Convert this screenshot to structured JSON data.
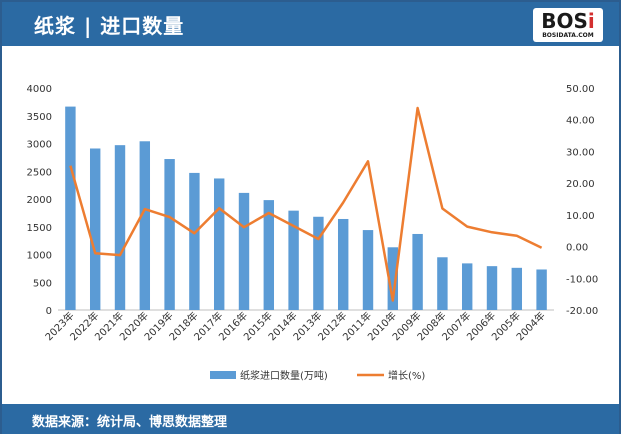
{
  "header": {
    "title": "纸浆 | 进口数量"
  },
  "logo": {
    "word_a": "BOS",
    "word_b": "i",
    "sub": "BOSIDATA.COM"
  },
  "footer": {
    "source": "数据来源：统计局、博思数据整理"
  },
  "colors": {
    "bar": "#5b9bd5",
    "line": "#ed7d31",
    "header": "#2b6aa3"
  },
  "chart_data": {
    "type": "bar",
    "categories": [
      "2023年",
      "2022年",
      "2021年",
      "2020年",
      "2019年",
      "2018年",
      "2017年",
      "2016年",
      "2015年",
      "2014年",
      "2013年",
      "2012年",
      "2011年",
      "2010年",
      "2009年",
      "2008年",
      "2007年",
      "2006年",
      "2005年",
      "2004年"
    ],
    "series": [
      {
        "name": "纸浆进口数量(万吨)",
        "type": "bar",
        "axis": "left",
        "values": [
          3665,
          2910,
          2970,
          3040,
          2720,
          2470,
          2370,
          2110,
          1980,
          1790,
          1680,
          1640,
          1440,
          1130,
          1370,
          950,
          840,
          790,
          760,
          730
        ]
      },
      {
        "name": "增长(%)",
        "type": "line",
        "axis": "right",
        "values": [
          25.5,
          -2.1,
          -2.7,
          11.8,
          9.3,
          4.2,
          12.1,
          6.1,
          10.6,
          6.5,
          2.4,
          13.9,
          26.9,
          -17.0,
          43.7,
          12.0,
          6.3,
          4.5,
          3.4,
          -0.4
        ]
      }
    ],
    "y_left": {
      "min": 0,
      "max": 4000,
      "step": 500,
      "ticks": [
        "0",
        "500",
        "1000",
        "1500",
        "2000",
        "2500",
        "3000",
        "3500",
        "4000"
      ]
    },
    "y_right": {
      "min": -20,
      "max": 50,
      "step": 10,
      "ticks": [
        "-20.00",
        "-10.00",
        "0.00",
        "10.00",
        "20.00",
        "30.00",
        "40.00",
        "50.00"
      ]
    },
    "legend": {
      "position": "bottom"
    },
    "grid": false
  }
}
